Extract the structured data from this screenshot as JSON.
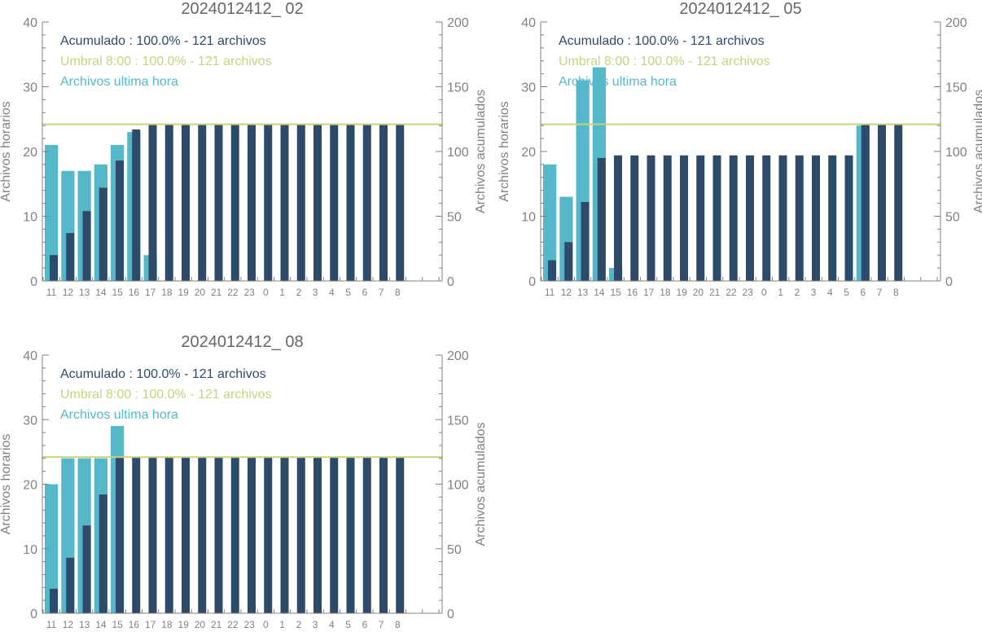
{
  "colors": {
    "hourly": "#55b8c8",
    "cumulative": "#2e4a6b",
    "threshold": "#c8d27a",
    "axis": "#808080",
    "title": "#666666"
  },
  "chart_data": [
    {
      "type": "bar",
      "title": "2024012412_ 02",
      "ylabel": "Archivos horarios",
      "y2label": "Archivos acumulados",
      "ylim": [
        0,
        40
      ],
      "y2lim": [
        0,
        200
      ],
      "yticks": [
        0,
        10,
        20,
        30,
        40
      ],
      "y2ticks": [
        0,
        50,
        100,
        150,
        200
      ],
      "categories": [
        "11",
        "12",
        "13",
        "14",
        "15",
        "16",
        "17",
        "18",
        "19",
        "20",
        "21",
        "22",
        "23",
        "0",
        "1",
        "2",
        "3",
        "4",
        "5",
        "6",
        "7",
        "8"
      ],
      "threshold": 121,
      "legend": [
        "Acumulado : 100.0% - 121 archivos",
        "Umbral 8:00 : 100.0% - 121 archivos",
        "Archivos ultima hora"
      ],
      "series": [
        {
          "name": "Archivos ultima hora",
          "axis": "left",
          "values": [
            21,
            17,
            17,
            18,
            21,
            23,
            4,
            0,
            0,
            0,
            0,
            0,
            0,
            0,
            0,
            0,
            0,
            0,
            0,
            0,
            0,
            0
          ]
        },
        {
          "name": "Acumulado",
          "axis": "right",
          "values": [
            20,
            37,
            54,
            72,
            93,
            117,
            121,
            121,
            121,
            121,
            121,
            121,
            121,
            121,
            121,
            121,
            121,
            121,
            121,
            121,
            121,
            121
          ]
        }
      ]
    },
    {
      "type": "bar",
      "title": "2024012412_ 05",
      "ylabel": "Archivos horarios",
      "y2label": "Archivos acumulados",
      "ylim": [
        0,
        40
      ],
      "y2lim": [
        0,
        200
      ],
      "yticks": [
        0,
        10,
        20,
        30,
        40
      ],
      "y2ticks": [
        0,
        50,
        100,
        150,
        200
      ],
      "categories": [
        "11",
        "12",
        "13",
        "14",
        "15",
        "16",
        "17",
        "18",
        "19",
        "20",
        "21",
        "22",
        "23",
        "0",
        "1",
        "2",
        "3",
        "4",
        "5",
        "6",
        "7",
        "8"
      ],
      "threshold": 121,
      "legend": [
        "Acumulado : 100.0% - 121 archivos",
        "Umbral 8:00 : 100.0% - 121 archivos",
        "Archivos ultima hora"
      ],
      "series": [
        {
          "name": "Archivos ultima hora",
          "axis": "left",
          "values": [
            18,
            13,
            31,
            33,
            2,
            0,
            0,
            0,
            0,
            0,
            0,
            0,
            0,
            0,
            0,
            0,
            0,
            0,
            0,
            24,
            0,
            0
          ]
        },
        {
          "name": "Acumulado",
          "axis": "right",
          "values": [
            16,
            30,
            61,
            95,
            97,
            97,
            97,
            97,
            97,
            97,
            97,
            97,
            97,
            97,
            97,
            97,
            97,
            97,
            97,
            121,
            121,
            121
          ]
        }
      ]
    },
    {
      "type": "bar",
      "title": "2024012412_ 08",
      "ylabel": "Archivos horarios",
      "y2label": "Archivos acumulados",
      "ylim": [
        0,
        40
      ],
      "y2lim": [
        0,
        200
      ],
      "yticks": [
        0,
        10,
        20,
        30,
        40
      ],
      "y2ticks": [
        0,
        50,
        100,
        150,
        200
      ],
      "categories": [
        "11",
        "12",
        "13",
        "14",
        "15",
        "16",
        "17",
        "18",
        "19",
        "20",
        "21",
        "22",
        "23",
        "0",
        "1",
        "2",
        "3",
        "4",
        "5",
        "6",
        "7",
        "8"
      ],
      "threshold": 121,
      "legend": [
        "Acumulado : 100.0% - 121 archivos",
        "Umbral 8:00 : 100.0% - 121 archivos",
        "Archivos ultima hora"
      ],
      "series": [
        {
          "name": "Archivos ultima hora",
          "axis": "left",
          "values": [
            20,
            24,
            24,
            24,
            29,
            0,
            0,
            0,
            0,
            0,
            0,
            0,
            0,
            0,
            0,
            0,
            0,
            0,
            0,
            0,
            0,
            0
          ]
        },
        {
          "name": "Acumulado",
          "axis": "right",
          "values": [
            19,
            43,
            68,
            92,
            121,
            121,
            121,
            121,
            121,
            121,
            121,
            121,
            121,
            121,
            121,
            121,
            121,
            121,
            121,
            121,
            121,
            121
          ]
        }
      ]
    }
  ]
}
